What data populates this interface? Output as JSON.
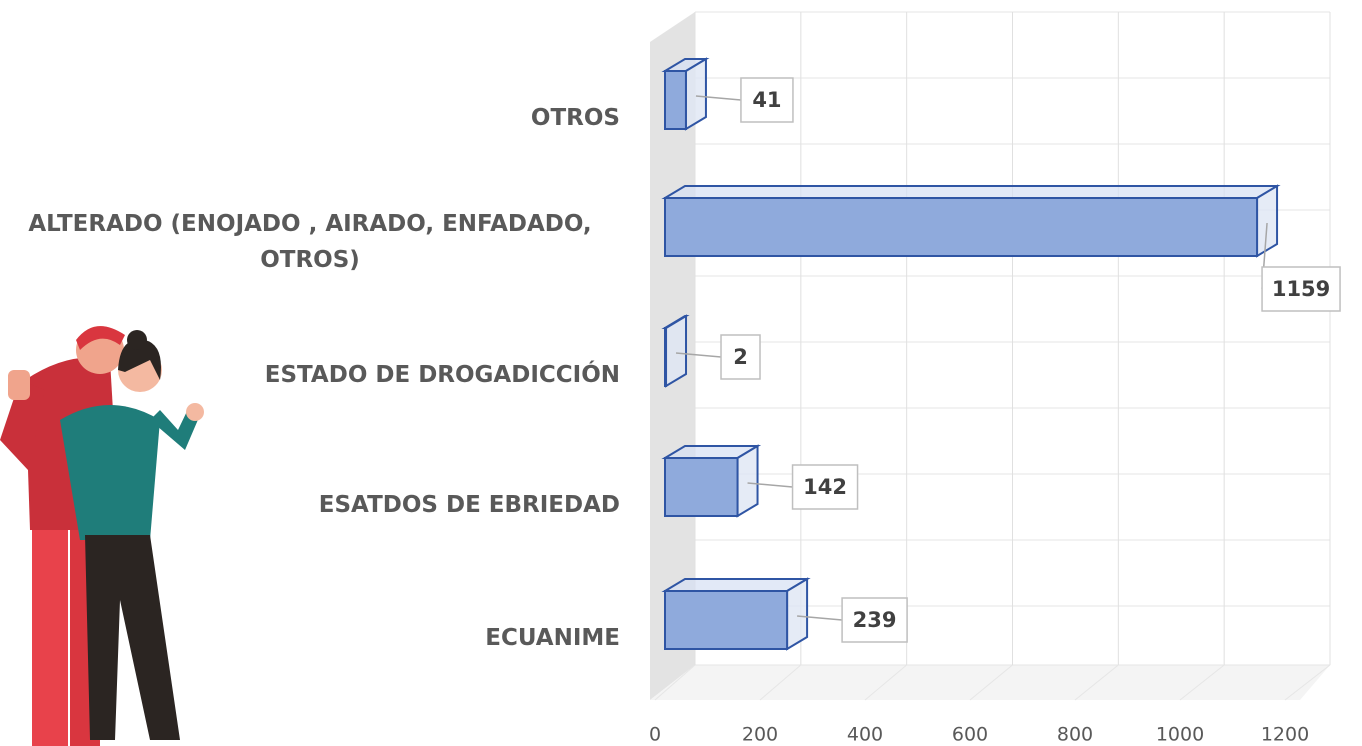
{
  "chart_data": {
    "type": "bar",
    "orientation": "horizontal",
    "categories": [
      "OTROS",
      "ALTERADO (ENOJADO , AIRADO, ENFADADO, OTROS)",
      "ESTADO DE DROGADICCIÓN",
      "ESATDOS DE EBRIEDAD",
      "ECUANIME"
    ],
    "values": [
      41,
      1159,
      2,
      142,
      239
    ],
    "color": "#8faadc",
    "xlim": [
      0,
      1200
    ],
    "xticks": [
      0,
      200,
      400,
      600,
      800,
      1000,
      1200
    ],
    "grid": true
  }
}
